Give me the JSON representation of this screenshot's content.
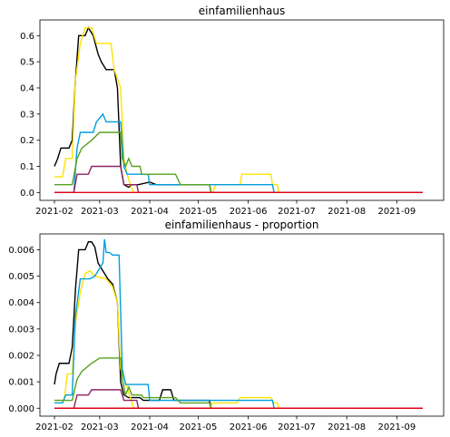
{
  "chart_data": [
    {
      "type": "line",
      "title": "einfamilienhaus",
      "xlabel": "",
      "ylabel": "",
      "xlim": [
        "2021-01-23",
        "2021-09-30"
      ],
      "ylim": [
        -0.03,
        0.66
      ],
      "yticks": [
        0.0,
        0.1,
        0.2,
        0.3,
        0.4,
        0.5,
        0.6
      ],
      "ytick_labels": [
        "0.0",
        "0.1",
        "0.2",
        "0.3",
        "0.4",
        "0.5",
        "0.6"
      ],
      "xticks": [
        "2021-02-01",
        "2021-03-01",
        "2021-04-01",
        "2021-05-01",
        "2021-06-01",
        "2021-07-01",
        "2021-08-01",
        "2021-09-01"
      ],
      "xtick_labels": [
        "2021-02",
        "2021-03",
        "2021-04",
        "2021-05",
        "2021-06",
        "2021-07",
        "2021-08",
        "2021-09"
      ],
      "grid": false,
      "legend": "none",
      "series": [
        {
          "color": "#000000",
          "points": [
            [
              "2021-02-01",
              0.1
            ],
            [
              "2021-02-03",
              0.13
            ],
            [
              "2021-02-05",
              0.17
            ],
            [
              "2021-02-10",
              0.17
            ],
            [
              "2021-02-12",
              0.2
            ],
            [
              "2021-02-14",
              0.43
            ],
            [
              "2021-02-16",
              0.6
            ],
            [
              "2021-02-20",
              0.6
            ],
            [
              "2021-02-22",
              0.63
            ],
            [
              "2021-02-25",
              0.6
            ],
            [
              "2021-02-28",
              0.53
            ],
            [
              "2021-03-02",
              0.5
            ],
            [
              "2021-03-05",
              0.47
            ],
            [
              "2021-03-10",
              0.47
            ],
            [
              "2021-03-12",
              0.4
            ],
            [
              "2021-03-14",
              0.1
            ],
            [
              "2021-03-16",
              0.03
            ],
            [
              "2021-03-19",
              0.02
            ],
            [
              "2021-03-21",
              0.03
            ],
            [
              "2021-03-25",
              0.03
            ],
            [
              "2021-04-01",
              0.04
            ],
            [
              "2021-04-05",
              0.03
            ],
            [
              "2021-05-08",
              0.03
            ],
            [
              "2021-05-09",
              0.0
            ],
            [
              "2021-09-17",
              0.0
            ]
          ]
        },
        {
          "color": "#ffe200",
          "points": [
            [
              "2021-02-01",
              0.06
            ],
            [
              "2021-02-06",
              0.06
            ],
            [
              "2021-02-08",
              0.13
            ],
            [
              "2021-02-12",
              0.13
            ],
            [
              "2021-02-14",
              0.43
            ],
            [
              "2021-02-17",
              0.57
            ],
            [
              "2021-02-20",
              0.63
            ],
            [
              "2021-02-24",
              0.63
            ],
            [
              "2021-02-27",
              0.57
            ],
            [
              "2021-03-08",
              0.57
            ],
            [
              "2021-03-10",
              0.47
            ],
            [
              "2021-03-14",
              0.4
            ],
            [
              "2021-03-16",
              0.13
            ],
            [
              "2021-03-18",
              0.07
            ],
            [
              "2021-03-20",
              0.03
            ],
            [
              "2021-03-22",
              0.0
            ],
            [
              "2021-05-10",
              0.0
            ],
            [
              "2021-05-12",
              0.03
            ],
            [
              "2021-05-27",
              0.03
            ],
            [
              "2021-05-28",
              0.07
            ],
            [
              "2021-06-15",
              0.07
            ],
            [
              "2021-06-16",
              0.03
            ],
            [
              "2021-06-19",
              0.03
            ],
            [
              "2021-06-20",
              0.0
            ],
            [
              "2021-09-17",
              0.0
            ]
          ]
        },
        {
          "color": "#009fde",
          "points": [
            [
              "2021-02-01",
              0.0
            ],
            [
              "2021-02-13",
              0.0
            ],
            [
              "2021-02-15",
              0.17
            ],
            [
              "2021-02-17",
              0.23
            ],
            [
              "2021-02-25",
              0.23
            ],
            [
              "2021-02-27",
              0.27
            ],
            [
              "2021-03-03",
              0.3
            ],
            [
              "2021-03-05",
              0.27
            ],
            [
              "2021-03-14",
              0.27
            ],
            [
              "2021-03-16",
              0.1
            ],
            [
              "2021-03-18",
              0.07
            ],
            [
              "2021-03-31",
              0.07
            ],
            [
              "2021-04-01",
              0.03
            ],
            [
              "2021-06-16",
              0.03
            ],
            [
              "2021-06-17",
              0.0
            ],
            [
              "2021-09-17",
              0.0
            ]
          ]
        },
        {
          "color": "#56a31e",
          "points": [
            [
              "2021-02-01",
              0.03
            ],
            [
              "2021-02-12",
              0.03
            ],
            [
              "2021-02-15",
              0.13
            ],
            [
              "2021-02-18",
              0.17
            ],
            [
              "2021-02-24",
              0.2
            ],
            [
              "2021-03-01",
              0.23
            ],
            [
              "2021-03-14",
              0.23
            ],
            [
              "2021-03-15",
              0.13
            ],
            [
              "2021-03-17",
              0.1
            ],
            [
              "2021-03-19",
              0.13
            ],
            [
              "2021-03-21",
              0.1
            ],
            [
              "2021-03-26",
              0.1
            ],
            [
              "2021-03-27",
              0.07
            ],
            [
              "2021-04-17",
              0.07
            ],
            [
              "2021-04-20",
              0.03
            ],
            [
              "2021-05-08",
              0.03
            ],
            [
              "2021-05-09",
              0.0
            ],
            [
              "2021-09-17",
              0.0
            ]
          ]
        },
        {
          "color": "#8e2463",
          "points": [
            [
              "2021-02-01",
              0.0
            ],
            [
              "2021-02-13",
              0.0
            ],
            [
              "2021-02-15",
              0.07
            ],
            [
              "2021-02-22",
              0.07
            ],
            [
              "2021-02-24",
              0.1
            ],
            [
              "2021-03-14",
              0.1
            ],
            [
              "2021-03-16",
              0.03
            ],
            [
              "2021-03-24",
              0.03
            ],
            [
              "2021-03-25",
              0.0
            ],
            [
              "2021-09-17",
              0.0
            ]
          ]
        },
        {
          "color": "#e3001b",
          "points": [
            [
              "2021-02-01",
              0.0
            ],
            [
              "2021-09-17",
              0.0
            ]
          ]
        }
      ]
    },
    {
      "type": "line",
      "title": "einfamilienhaus - proportion",
      "xlabel": "",
      "ylabel": "",
      "xlim": [
        "2021-01-23",
        "2021-09-30"
      ],
      "ylim": [
        -0.0003,
        0.0066
      ],
      "yticks": [
        0.0,
        0.001,
        0.002,
        0.003,
        0.004,
        0.005,
        0.006
      ],
      "ytick_labels": [
        "0.000",
        "0.001",
        "0.002",
        "0.003",
        "0.004",
        "0.005",
        "0.006"
      ],
      "xticks": [
        "2021-02-01",
        "2021-03-01",
        "2021-04-01",
        "2021-05-01",
        "2021-06-01",
        "2021-07-01",
        "2021-08-01",
        "2021-09-01"
      ],
      "xtick_labels": [
        "2021-02",
        "2021-03",
        "2021-04",
        "2021-05",
        "2021-06",
        "2021-07",
        "2021-08",
        "2021-09"
      ],
      "grid": false,
      "legend": "none",
      "series": [
        {
          "color": "#000000",
          "points": [
            [
              "2021-02-01",
              0.0009
            ],
            [
              "2021-02-02",
              0.0013
            ],
            [
              "2021-02-04",
              0.0017
            ],
            [
              "2021-02-10",
              0.0017
            ],
            [
              "2021-02-12",
              0.0023
            ],
            [
              "2021-02-14",
              0.0045
            ],
            [
              "2021-02-16",
              0.006
            ],
            [
              "2021-02-20",
              0.006
            ],
            [
              "2021-02-22",
              0.0063
            ],
            [
              "2021-02-24",
              0.0063
            ],
            [
              "2021-02-26",
              0.0061
            ],
            [
              "2021-02-28",
              0.0055
            ],
            [
              "2021-03-03",
              0.0052
            ],
            [
              "2021-03-06",
              0.0049
            ],
            [
              "2021-03-09",
              0.0047
            ],
            [
              "2021-03-12",
              0.004
            ],
            [
              "2021-03-14",
              0.001
            ],
            [
              "2021-03-16",
              0.0005
            ],
            [
              "2021-03-19",
              0.0004
            ],
            [
              "2021-03-26",
              0.0004
            ],
            [
              "2021-03-28",
              0.0003
            ],
            [
              "2021-04-07",
              0.0003
            ],
            [
              "2021-04-09",
              0.0007
            ],
            [
              "2021-04-14",
              0.0007
            ],
            [
              "2021-04-16",
              0.0003
            ],
            [
              "2021-05-08",
              0.0003
            ],
            [
              "2021-05-09",
              0.0
            ],
            [
              "2021-09-17",
              0.0
            ]
          ]
        },
        {
          "color": "#ffe200",
          "points": [
            [
              "2021-02-01",
              0.0003
            ],
            [
              "2021-02-07",
              0.0003
            ],
            [
              "2021-02-09",
              0.0013
            ],
            [
              "2021-02-12",
              0.0013
            ],
            [
              "2021-02-14",
              0.0032
            ],
            [
              "2021-02-17",
              0.0044
            ],
            [
              "2021-02-20",
              0.0051
            ],
            [
              "2021-02-23",
              0.0052
            ],
            [
              "2021-02-26",
              0.005
            ],
            [
              "2021-03-05",
              0.0049
            ],
            [
              "2021-03-09",
              0.0046
            ],
            [
              "2021-03-12",
              0.004
            ],
            [
              "2021-03-14",
              0.0015
            ],
            [
              "2021-03-18",
              0.0008
            ],
            [
              "2021-03-20",
              0.0004
            ],
            [
              "2021-03-22",
              0.0
            ],
            [
              "2021-05-08",
              0.0
            ],
            [
              "2021-05-10",
              0.0002
            ],
            [
              "2021-05-25",
              0.0002
            ],
            [
              "2021-05-27",
              0.0004
            ],
            [
              "2021-06-15",
              0.0004
            ],
            [
              "2021-06-17",
              0.0002
            ],
            [
              "2021-06-19",
              0.0002
            ],
            [
              "2021-06-20",
              0.0
            ],
            [
              "2021-09-17",
              0.0
            ]
          ]
        },
        {
          "color": "#009fde",
          "points": [
            [
              "2021-02-01",
              0.0002
            ],
            [
              "2021-02-06",
              0.0002
            ],
            [
              "2021-02-08",
              0.0005
            ],
            [
              "2021-02-12",
              0.0005
            ],
            [
              "2021-02-14",
              0.0035
            ],
            [
              "2021-02-17",
              0.0049
            ],
            [
              "2021-02-23",
              0.0049
            ],
            [
              "2021-02-26",
              0.005
            ],
            [
              "2021-03-03",
              0.0055
            ],
            [
              "2021-03-04",
              0.0064
            ],
            [
              "2021-03-05",
              0.0059
            ],
            [
              "2021-03-07",
              0.0059
            ],
            [
              "2021-03-09",
              0.0058
            ],
            [
              "2021-03-13",
              0.0058
            ],
            [
              "2021-03-15",
              0.0015
            ],
            [
              "2021-03-17",
              0.0009
            ],
            [
              "2021-03-31",
              0.0009
            ],
            [
              "2021-04-01",
              0.0003
            ],
            [
              "2021-06-16",
              0.0003
            ],
            [
              "2021-06-17",
              0.0
            ],
            [
              "2021-09-17",
              0.0
            ]
          ]
        },
        {
          "color": "#56a31e",
          "points": [
            [
              "2021-02-01",
              0.0003
            ],
            [
              "2021-02-12",
              0.0003
            ],
            [
              "2021-02-15",
              0.0011
            ],
            [
              "2021-02-18",
              0.0014
            ],
            [
              "2021-02-24",
              0.0017
            ],
            [
              "2021-03-01",
              0.0019
            ],
            [
              "2021-03-14",
              0.0019
            ],
            [
              "2021-03-15",
              0.0011
            ],
            [
              "2021-03-17",
              0.0005
            ],
            [
              "2021-03-19",
              0.0008
            ],
            [
              "2021-03-21",
              0.0005
            ],
            [
              "2021-03-27",
              0.0005
            ],
            [
              "2021-03-28",
              0.0004
            ],
            [
              "2021-04-17",
              0.0004
            ],
            [
              "2021-04-20",
              0.0002
            ],
            [
              "2021-05-08",
              0.0002
            ],
            [
              "2021-05-09",
              0.0
            ],
            [
              "2021-09-17",
              0.0
            ]
          ]
        },
        {
          "color": "#8e2463",
          "points": [
            [
              "2021-02-01",
              0.0
            ],
            [
              "2021-02-13",
              0.0
            ],
            [
              "2021-02-15",
              0.0005
            ],
            [
              "2021-02-22",
              0.0005
            ],
            [
              "2021-02-24",
              0.0007
            ],
            [
              "2021-03-14",
              0.0007
            ],
            [
              "2021-03-16",
              0.0003
            ],
            [
              "2021-03-24",
              0.0003
            ],
            [
              "2021-03-25",
              0.0
            ],
            [
              "2021-09-17",
              0.0
            ]
          ]
        },
        {
          "color": "#e3001b",
          "points": [
            [
              "2021-02-01",
              0.0
            ],
            [
              "2021-09-17",
              0.0
            ]
          ]
        }
      ]
    }
  ]
}
